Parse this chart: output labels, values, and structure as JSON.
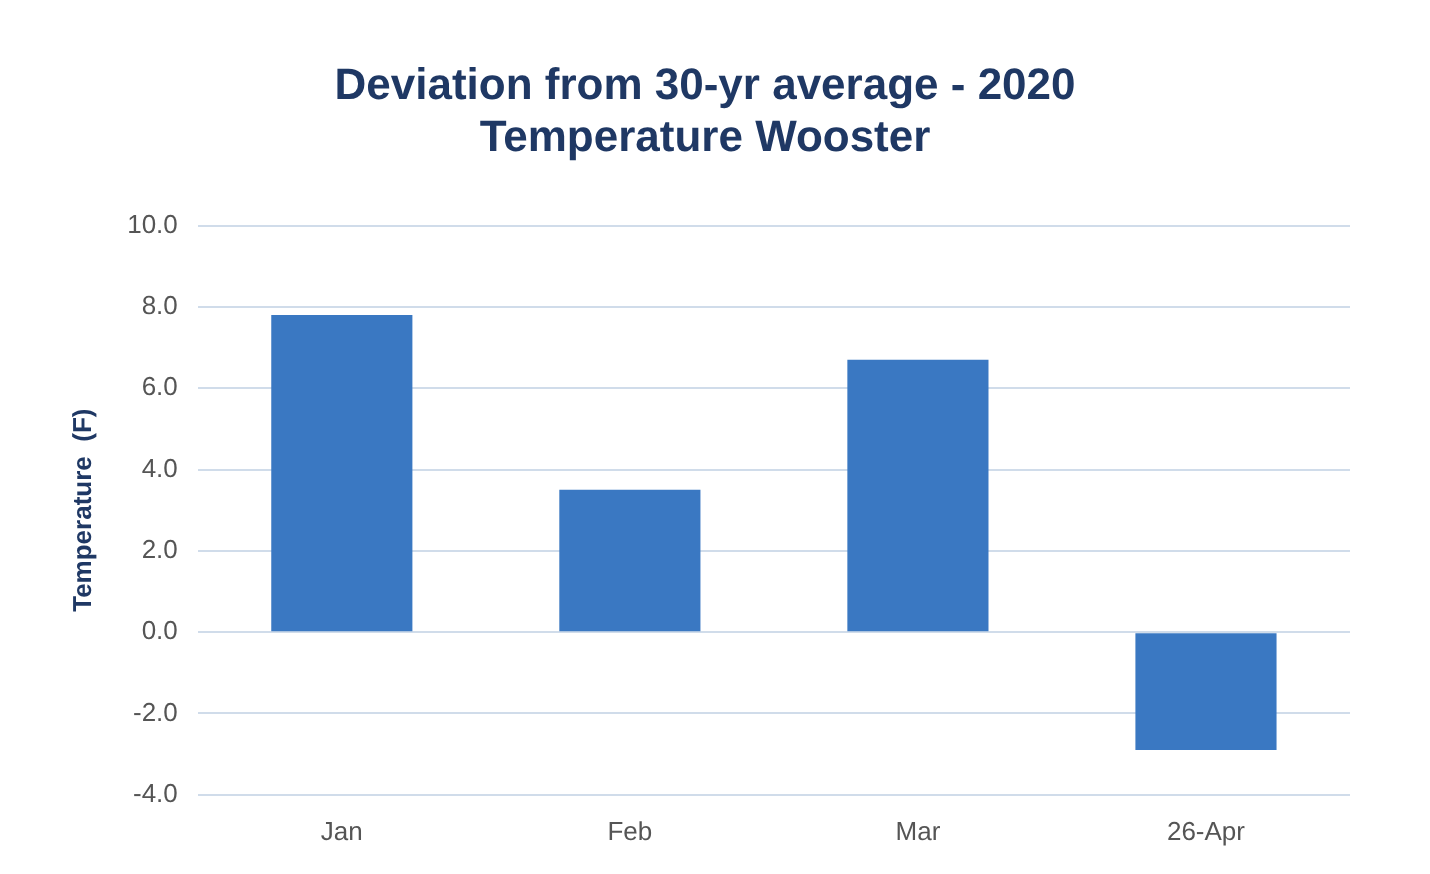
{
  "chart_data": {
    "type": "bar",
    "title": "Deviation from 30-yr average - 2020\nTemperature Wooster",
    "ylabel": "Temperature  (F)",
    "categories": [
      "Jan",
      "Feb",
      "Mar",
      "26-Apr"
    ],
    "values": [
      7.8,
      3.5,
      6.7,
      -2.9
    ],
    "color": "#3a78c2",
    "ylim": [
      -4,
      10
    ],
    "yticks": [
      {
        "value": -4,
        "label": "-4.0"
      },
      {
        "value": -2,
        "label": "-2.0"
      },
      {
        "value": 0,
        "label": "0.0"
      },
      {
        "value": 2,
        "label": "2.0"
      },
      {
        "value": 4,
        "label": "4.0"
      },
      {
        "value": 6,
        "label": "6.0"
      },
      {
        "value": 8,
        "label": "8.0"
      },
      {
        "value": 10,
        "label": "10.0"
      }
    ],
    "grid": "y",
    "legend": false
  }
}
